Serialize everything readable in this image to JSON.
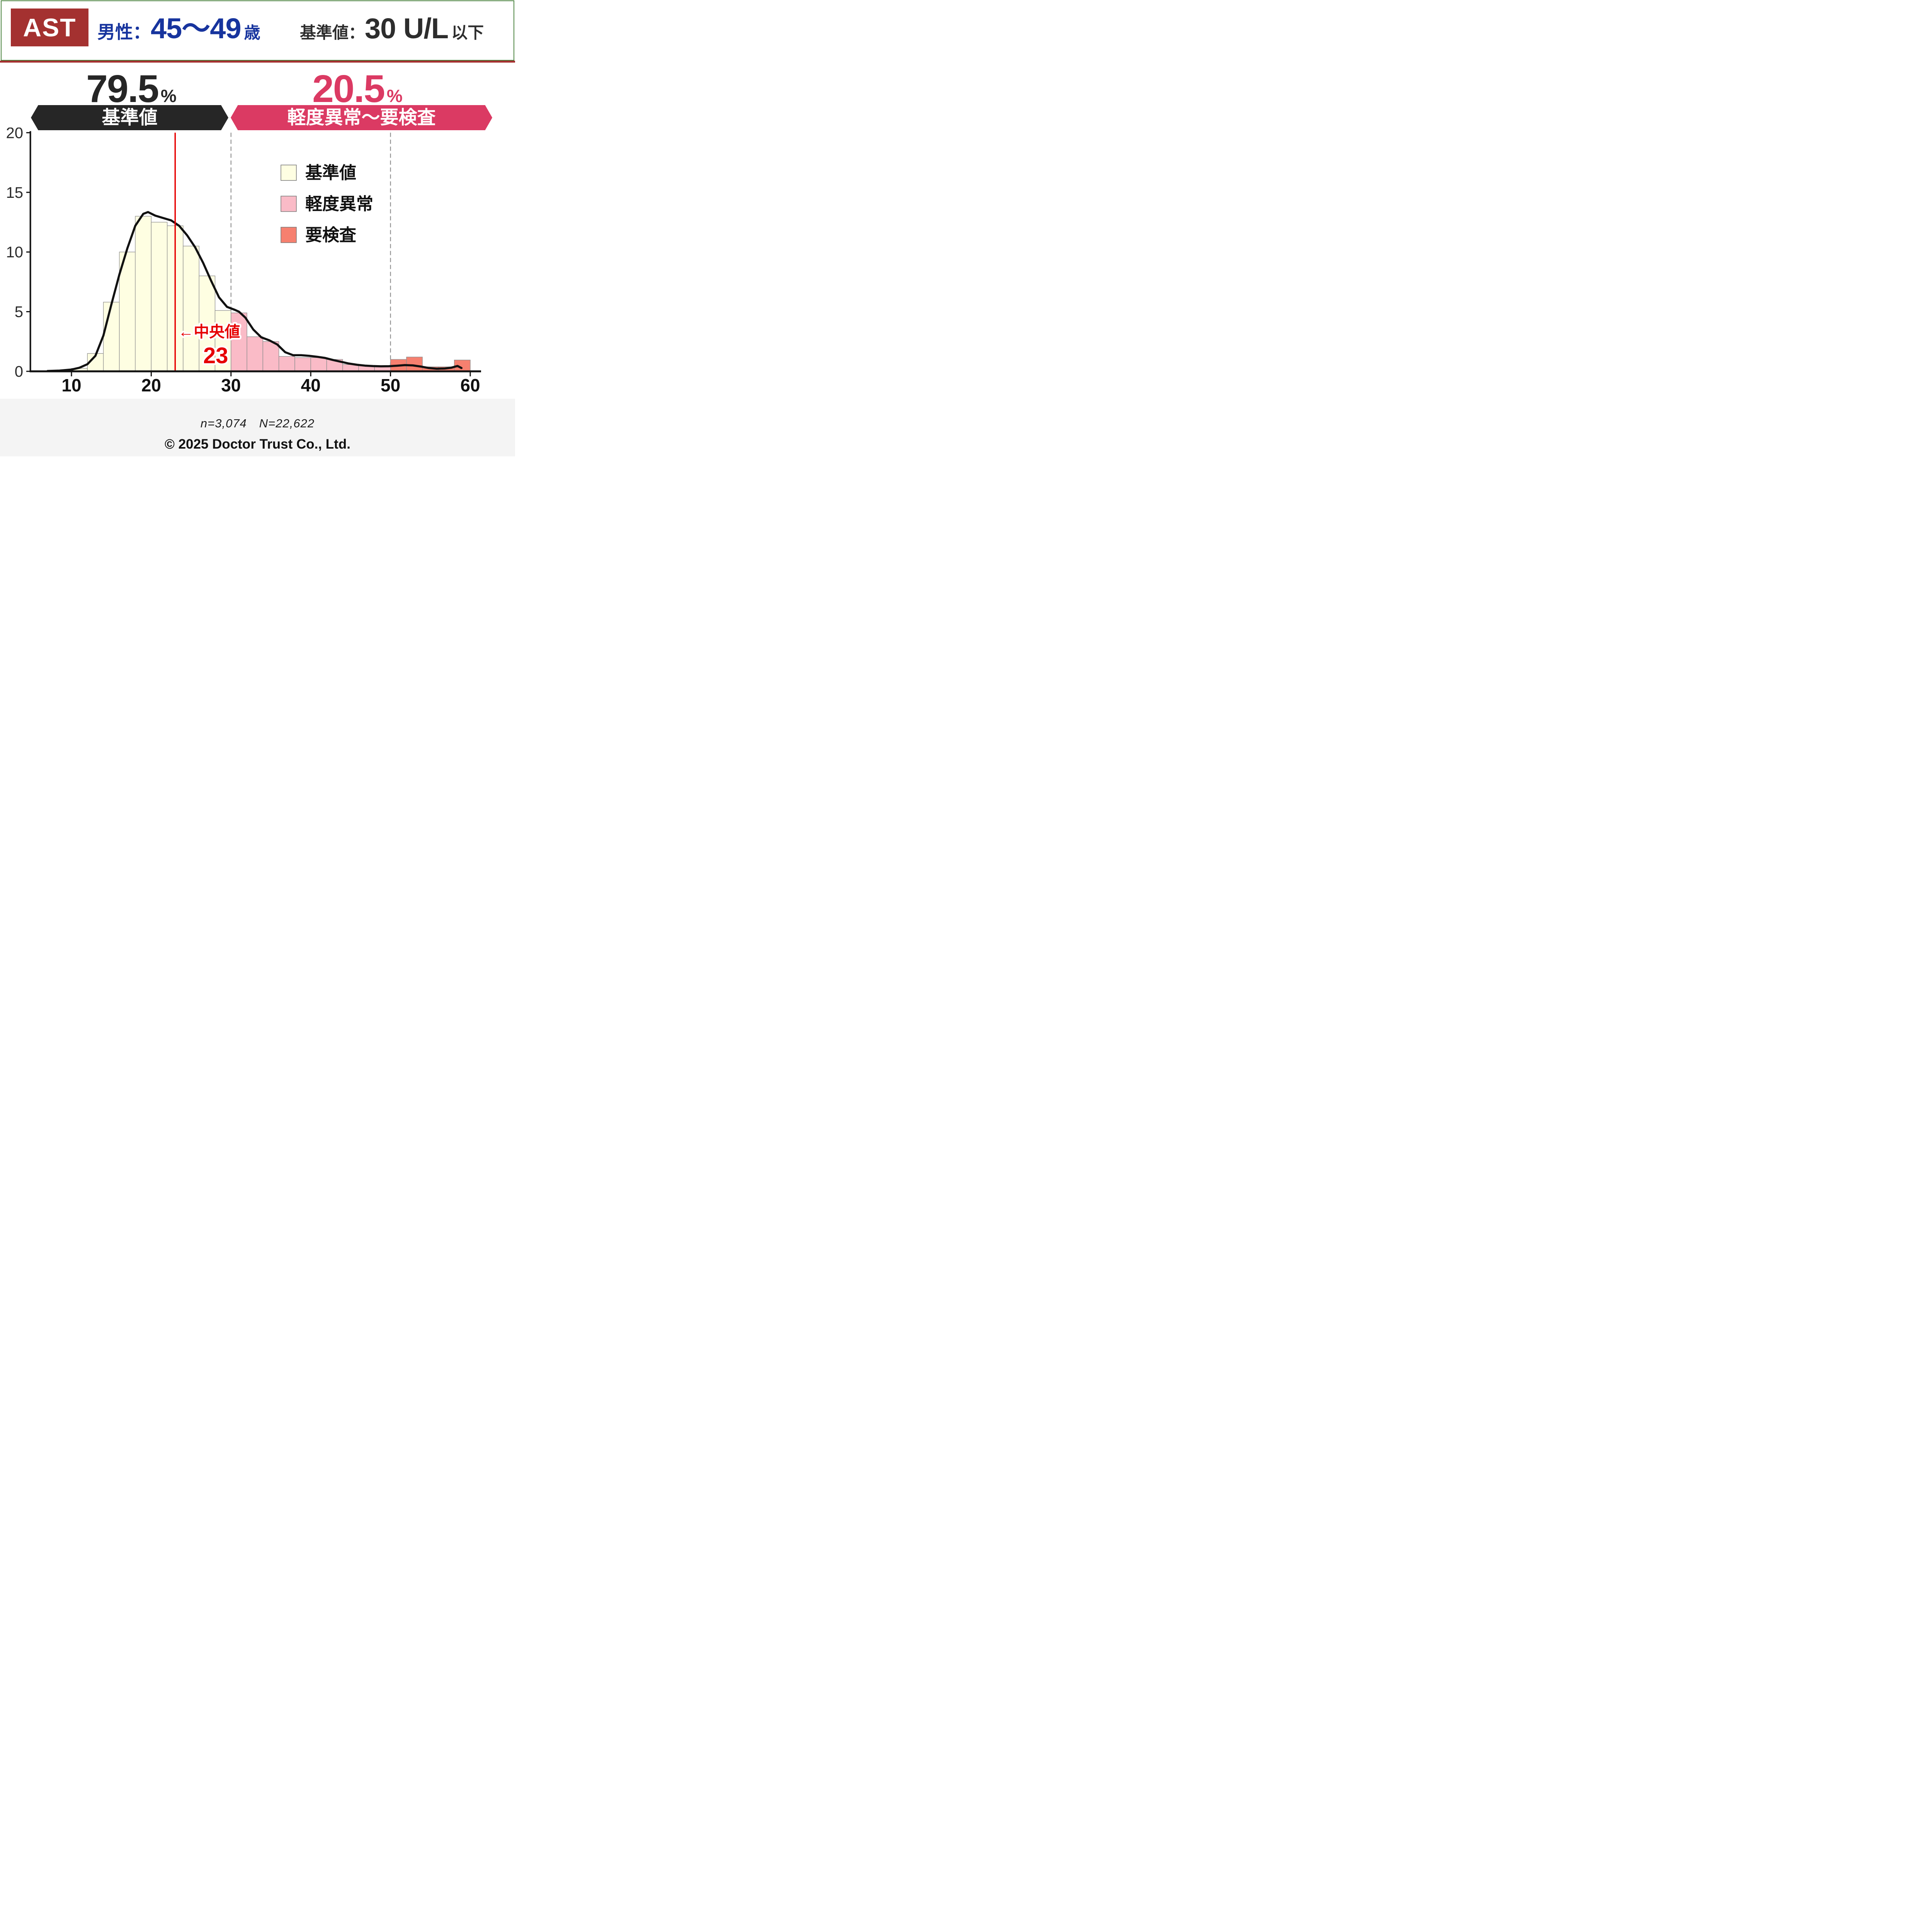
{
  "header": {
    "badge": "AST",
    "badge_bg": "#A43130",
    "border_color": "#4C8440",
    "divider_color": "#A43130",
    "demographic": {
      "prefix": "男性：",
      "range": "45～49",
      "suffix": "歳",
      "color": "#17349E"
    },
    "reference": {
      "prefix": "基準値：",
      "value": "30 U/L",
      "suffix": "以下",
      "color": "#2D2D2D"
    }
  },
  "summary": {
    "normal": {
      "value": "79.5",
      "unit": "%",
      "label": "基準値",
      "color": "#262626"
    },
    "abnormal": {
      "value": "20.5",
      "unit": "%",
      "label": "軽度異常～要検査",
      "color": "#DB3A63"
    }
  },
  "chart_data": {
    "type": "histogram",
    "title": "",
    "xlabel": "",
    "ylabel": "",
    "xlim": [
      4.8,
      62
    ],
    "ylim": [
      0,
      20
    ],
    "grid": "off",
    "bin_width": 2,
    "x_tick_values": [
      10,
      20,
      30,
      40,
      50,
      60
    ],
    "x_ticks": [
      "10",
      "20",
      "30",
      "40",
      "50",
      "60"
    ],
    "y_tick_values": [
      0,
      5,
      10,
      15,
      20
    ],
    "y_ticks": [
      "0",
      "5",
      "10",
      "15",
      "20"
    ],
    "axis_color": "#111111",
    "series": [
      {
        "name": "基準値",
        "color": "#FEFEE2",
        "bins": [
          [
            8,
            0.1
          ],
          [
            10,
            0.25
          ],
          [
            12,
            1.5
          ],
          [
            14,
            5.8
          ],
          [
            16,
            10.0
          ],
          [
            18,
            13.0
          ],
          [
            20,
            12.5
          ],
          [
            22,
            12.2
          ],
          [
            24,
            10.5
          ],
          [
            26,
            8.0
          ],
          [
            28,
            5.1
          ]
        ]
      },
      {
        "name": "軽度異常",
        "color": "#FABBC7",
        "bins": [
          [
            30,
            4.9
          ],
          [
            32,
            2.9
          ],
          [
            34,
            2.5
          ],
          [
            36,
            1.25
          ],
          [
            38,
            1.15
          ],
          [
            40,
            1.15
          ],
          [
            42,
            1.0
          ],
          [
            44,
            0.57
          ],
          [
            46,
            0.5
          ],
          [
            48,
            0.4
          ]
        ]
      },
      {
        "name": "要検査",
        "color": "#F6806F",
        "bins": [
          [
            50,
            1.0
          ],
          [
            52,
            1.2
          ],
          [
            54,
            0.38
          ],
          [
            56,
            0.38
          ],
          [
            58,
            0.95
          ]
        ]
      }
    ],
    "legend_position": "upper-right",
    "kde_line": {
      "color": "#111111",
      "points": [
        [
          7,
          0.03
        ],
        [
          8.5,
          0.06
        ],
        [
          10,
          0.15
        ],
        [
          11,
          0.3
        ],
        [
          12,
          0.6
        ],
        [
          13,
          1.3
        ],
        [
          14,
          3.0
        ],
        [
          15,
          5.6
        ],
        [
          16,
          8.1
        ],
        [
          17,
          10.3
        ],
        [
          18,
          12.2
        ],
        [
          19,
          13.2
        ],
        [
          19.6,
          13.35
        ],
        [
          20.5,
          13.05
        ],
        [
          21.5,
          12.85
        ],
        [
          22.5,
          12.65
        ],
        [
          23.5,
          12.2
        ],
        [
          24.5,
          11.4
        ],
        [
          25.5,
          10.4
        ],
        [
          26.5,
          9.1
        ],
        [
          27.5,
          7.6
        ],
        [
          28.5,
          6.2
        ],
        [
          29.5,
          5.4
        ],
        [
          30.5,
          5.15
        ],
        [
          31,
          5.0
        ],
        [
          31.8,
          4.5
        ],
        [
          32.8,
          3.5
        ],
        [
          33.8,
          2.85
        ],
        [
          34.8,
          2.6
        ],
        [
          35.8,
          2.25
        ],
        [
          36.8,
          1.6
        ],
        [
          37.8,
          1.35
        ],
        [
          38.8,
          1.35
        ],
        [
          39.8,
          1.3
        ],
        [
          40.8,
          1.22
        ],
        [
          41.8,
          1.12
        ],
        [
          42.8,
          0.95
        ],
        [
          43.8,
          0.8
        ],
        [
          44.8,
          0.65
        ],
        [
          45.8,
          0.55
        ],
        [
          46.8,
          0.48
        ],
        [
          47.8,
          0.44
        ],
        [
          48.8,
          0.42
        ],
        [
          49.8,
          0.43
        ],
        [
          50.8,
          0.47
        ],
        [
          51.8,
          0.52
        ],
        [
          52.8,
          0.5
        ],
        [
          53.8,
          0.4
        ],
        [
          54.8,
          0.28
        ],
        [
          55.8,
          0.22
        ],
        [
          56.8,
          0.24
        ],
        [
          57.6,
          0.3
        ],
        [
          58.4,
          0.45
        ],
        [
          58.9,
          0.28
        ]
      ]
    },
    "median": {
      "x": 23,
      "arrow_label": "←中央値",
      "value_label": "23",
      "color": "#E60000"
    },
    "threshold_lines": {
      "values": [
        30,
        50
      ],
      "color": "#8C8C8C",
      "style": "dashed"
    }
  },
  "footer": {
    "bg": "#F4F4F4",
    "sample_size": "n=3,074　N=22,622",
    "copyright": "© 2025 Doctor Trust Co., Ltd."
  }
}
